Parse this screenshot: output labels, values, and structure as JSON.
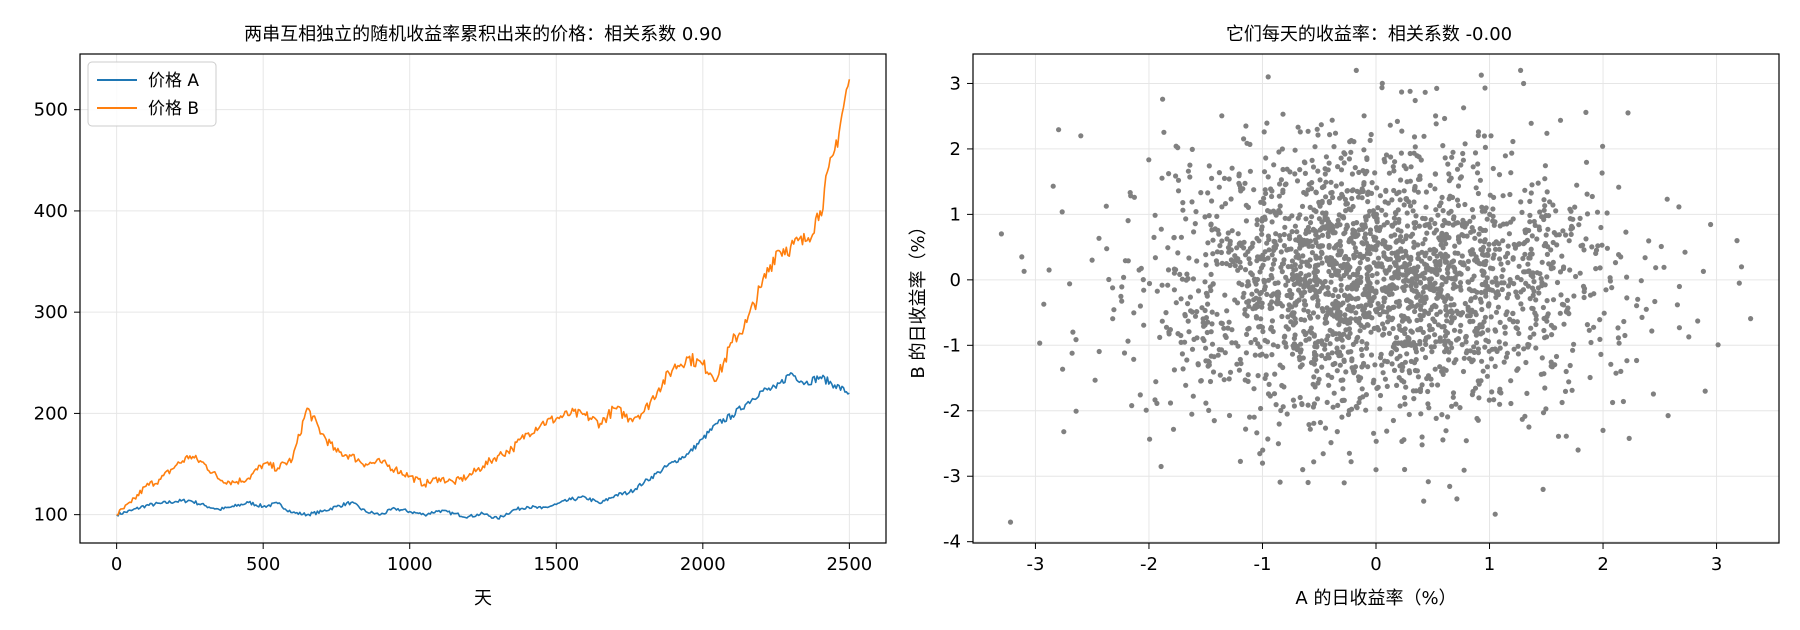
{
  "chart_data": [
    {
      "type": "line",
      "title": "两串互相独立的随机收益率累积出来的价格：相关系数 0.90",
      "xlabel": "天",
      "ylabel": "",
      "xlim": [
        -125,
        2625
      ],
      "ylim": [
        72,
        555
      ],
      "xticks": [
        0,
        500,
        1000,
        1500,
        2000,
        2500
      ],
      "yticks": [
        100,
        200,
        300,
        400,
        500
      ],
      "grid": true,
      "legend_position": "upper-left",
      "series": [
        {
          "name": "价格 A",
          "color": "#1f77b4",
          "x": [
            0,
            50,
            100,
            150,
            200,
            250,
            300,
            350,
            400,
            450,
            500,
            550,
            600,
            650,
            700,
            750,
            800,
            850,
            900,
            950,
            1000,
            1050,
            1100,
            1150,
            1200,
            1250,
            1300,
            1350,
            1400,
            1450,
            1500,
            1550,
            1600,
            1650,
            1700,
            1750,
            1800,
            1850,
            1900,
            1950,
            2000,
            2050,
            2100,
            2150,
            2200,
            2250,
            2300,
            2350,
            2400,
            2450,
            2500
          ],
          "values": [
            100,
            104,
            109,
            111,
            113,
            114,
            109,
            105,
            108,
            112,
            108,
            111,
            102,
            100,
            103,
            108,
            112,
            103,
            100,
            106,
            103,
            100,
            104,
            101,
            98,
            101,
            96,
            104,
            108,
            106,
            110,
            115,
            117,
            111,
            119,
            122,
            132,
            142,
            152,
            160,
            175,
            190,
            198,
            210,
            222,
            225,
            240,
            230,
            236,
            228,
            220
          ]
        },
        {
          "name": "价格 B",
          "color": "#ff7f0e",
          "x": [
            0,
            50,
            100,
            150,
            200,
            250,
            300,
            350,
            400,
            450,
            500,
            550,
            600,
            650,
            700,
            750,
            800,
            850,
            900,
            950,
            1000,
            1050,
            1100,
            1150,
            1200,
            1250,
            1300,
            1350,
            1400,
            1450,
            1500,
            1550,
            1600,
            1650,
            1700,
            1750,
            1800,
            1850,
            1900,
            1950,
            2000,
            2050,
            2100,
            2150,
            2200,
            2250,
            2300,
            2350,
            2400,
            2450,
            2500
          ],
          "values": [
            100,
            112,
            128,
            135,
            148,
            158,
            150,
            135,
            132,
            136,
            150,
            146,
            155,
            205,
            180,
            162,
            158,
            150,
            152,
            145,
            138,
            130,
            136,
            132,
            138,
            148,
            158,
            165,
            180,
            190,
            195,
            200,
            198,
            190,
            205,
            195,
            202,
            225,
            245,
            255,
            248,
            235,
            270,
            290,
            325,
            360,
            365,
            370,
            400,
            460,
            530
          ]
        }
      ]
    },
    {
      "type": "scatter",
      "title": "它们每天的收益率：相关系数 -0.00",
      "xlabel": "A 的日收益率（%）",
      "ylabel": "B 的日收益率（%）",
      "xlim": [
        -3.55,
        3.55
      ],
      "ylim": [
        -4.02,
        3.45
      ],
      "xticks": [
        -3,
        -2,
        -1,
        0,
        1,
        2,
        3
      ],
      "yticks": [
        -4,
        -3,
        -2,
        -1,
        0,
        1,
        2,
        3
      ],
      "grid": true,
      "point_color": "#808080",
      "point_count": 2500,
      "outliers": [
        {
          "x": -3.22,
          "y": -3.7
        },
        {
          "x": -3.12,
          "y": 0.35
        },
        {
          "x": -3.1,
          "y": 0.13
        },
        {
          "x": -2.88,
          "y": 0.15
        },
        {
          "x": -2.75,
          "y": -2.32
        },
        {
          "x": -2.6,
          "y": 2.2
        },
        {
          "x": -1.88,
          "y": 2.76
        },
        {
          "x": -0.95,
          "y": 3.1
        },
        {
          "x": -1.0,
          "y": -2.8
        },
        {
          "x": -0.28,
          "y": -3.1
        },
        {
          "x": 0.0,
          "y": -2.9
        },
        {
          "x": 0.42,
          "y": -3.38
        },
        {
          "x": 0.3,
          "y": 2.88
        },
        {
          "x": 0.96,
          "y": 2.93
        },
        {
          "x": 1.3,
          "y": 3.0
        },
        {
          "x": 1.05,
          "y": -3.58
        },
        {
          "x": 2.22,
          "y": 2.55
        },
        {
          "x": 3.18,
          "y": 0.6
        },
        {
          "x": 3.22,
          "y": 0.2
        },
        {
          "x": 2.9,
          "y": -1.7
        },
        {
          "x": 2.0,
          "y": -2.3
        },
        {
          "x": 1.78,
          "y": -2.6
        }
      ]
    }
  ]
}
